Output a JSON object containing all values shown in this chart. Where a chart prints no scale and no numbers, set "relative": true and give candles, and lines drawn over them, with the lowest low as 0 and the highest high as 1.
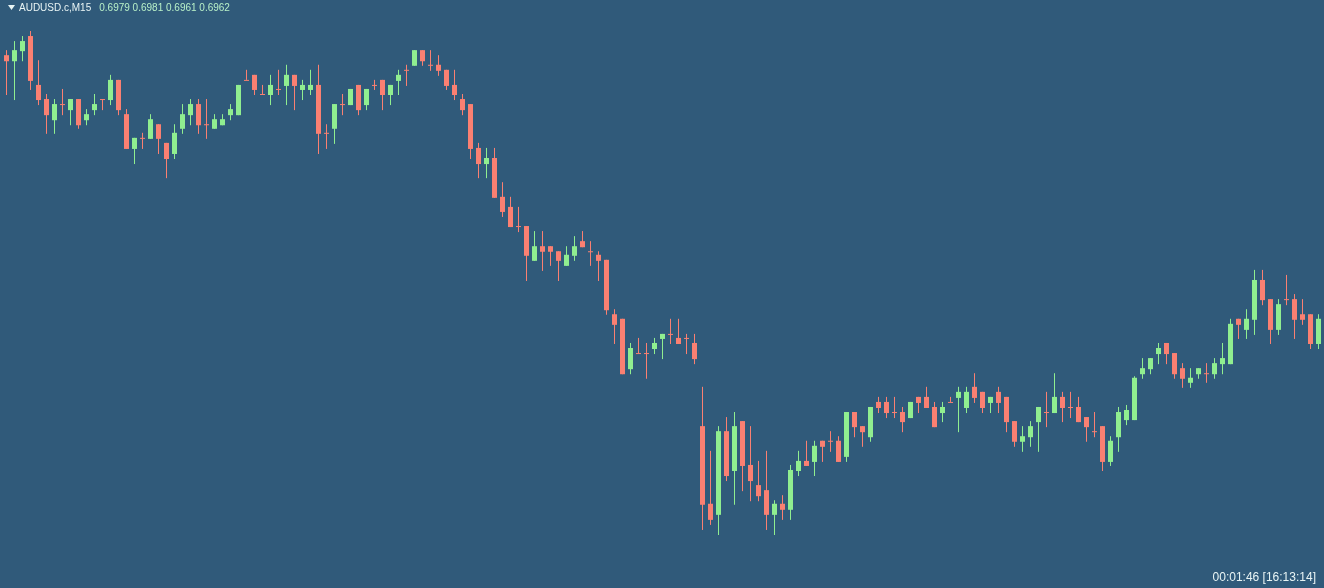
{
  "chart_data": {
    "type": "candlestick",
    "title": "AUDUSD.c,M15",
    "annotations": [
      "0.6979 0.6981 0.6961 0.6962",
      "00:01:46 [16:13:14]"
    ],
    "relative": true,
    "colors": [
      "#fa8072",
      "#90ee90",
      "#90ee90",
      "#fa8072",
      "#fa8072",
      "#fa8072",
      "#90ee90",
      "#fa8072",
      "#90ee90",
      "#fa8072",
      "#90ee90",
      "#90ee90",
      "#fa8072",
      "#90ee90",
      "#fa8072",
      "#fa8072",
      "#90ee90",
      "#fa8072",
      "#90ee90",
      "#fa8072",
      "#fa8072",
      "#90ee90",
      "#90ee90",
      "#90ee90",
      "#fa8072",
      "#fa8072",
      "#90ee90",
      "#90ee90",
      "#90ee90",
      "#90ee90",
      "#fa8072",
      "#fa8072",
      "#fa8072",
      "#90ee90",
      "#fa8072",
      "#90ee90",
      "#fa8072",
      "#90ee90",
      "#90ee90",
      "#fa8072",
      "#fa8072",
      "#90ee90",
      "#fa8072",
      "#90ee90",
      "#fa8072",
      "#90ee90",
      "#fa8072",
      "#fa8072",
      "#90ee90",
      "#90ee90",
      "#fa8072",
      "#90ee90",
      "#fa8072",
      "#fa8072",
      "#fa8072",
      "#fa8072",
      "#fa8072",
      "#fa8072",
      "#fa8072",
      "#fa8072",
      "#90ee90",
      "#fa8072",
      "#fa8072",
      "#fa8072",
      "#fa8072",
      "#fa8072",
      "#90ee90",
      "#fa8072",
      "#fa8072",
      "#fa8072",
      "#90ee90",
      "#90ee90",
      "#fa8072",
      "#fa8072",
      "#fa8072",
      "#fa8072",
      "#fa8072",
      "#fa8072",
      "#90ee90",
      "#fa8072",
      "#fa8072",
      "#90ee90",
      "#90ee90",
      "#fa8072",
      "#fa8072",
      "#fa8072",
      "#fa8072",
      "#fa8072",
      "#fa8072",
      "#90ee90",
      "#fa8072",
      "#90ee90",
      "#fa8072",
      "#fa8072",
      "#fa8072",
      "#fa8072",
      "#90ee90",
      "#fa8072",
      "#90ee90",
      "#90ee90",
      "#fa8072",
      "#90ee90",
      "#fa8072",
      "#fa8072",
      "#fa8072",
      "#90ee90",
      "#fa8072",
      "#fa8072",
      "#90ee90",
      "#fa8072",
      "#fa8072",
      "#fa8072",
      "#fa8072",
      "#90ee90",
      "#fa8072",
      "#fa8072",
      "#fa8072",
      "#90ee90",
      "#fa8072",
      "#90ee90",
      "#90ee90",
      "#fa8072",
      "#fa8072",
      "#90ee90",
      "#fa8072",
      "#fa8072",
      "#fa8072",
      "#90ee90",
      "#90ee90",
      "#90ee90",
      "#fa8072",
      "#90ee90",
      "#fa8072",
      "#fa8072",
      "#fa8072",
      "#fa8072",
      "#fa8072",
      "#fa8072",
      "#90ee90",
      "#90ee90",
      "#90ee90",
      "#90ee90",
      "#90ee90",
      "#90ee90",
      "#90ee90",
      "#fa8072",
      "#fa8072",
      "#fa8072",
      "#90ee90",
      "#90ee90",
      "#fa8072",
      "#90ee90",
      "#90ee90",
      "#90ee90",
      "#fa8072",
      "#90ee90",
      "#90ee90",
      "#fa8072",
      "#fa8072",
      "#90ee90",
      "#fa8072",
      "#fa8072",
      "#fa8072",
      "#fa8072",
      "#90ee90"
    ],
    "categories": [
      null,
      null,
      null,
      null,
      null,
      null,
      null,
      null,
      null,
      null,
      null,
      null,
      null,
      null,
      null,
      null,
      null,
      null,
      null,
      null,
      null,
      null,
      null,
      null,
      null,
      null,
      null,
      null,
      null,
      null,
      null,
      null,
      null,
      null,
      null,
      null,
      null,
      null,
      null,
      null,
      null,
      null,
      null,
      null,
      null,
      null,
      null,
      null,
      null,
      null,
      null,
      null,
      null,
      null,
      null,
      null,
      null,
      null,
      null,
      null,
      null,
      null,
      null,
      null,
      null,
      null,
      null,
      null,
      null,
      null,
      null,
      null,
      null,
      null,
      null,
      null,
      null,
      null,
      null,
      null,
      null,
      null,
      null,
      null,
      null,
      null,
      null,
      null,
      null,
      null,
      null,
      null,
      null,
      null,
      null,
      null,
      null,
      null,
      null,
      null,
      null,
      null,
      null,
      null,
      null,
      null,
      null,
      null,
      null,
      null,
      null,
      null,
      null,
      null,
      null,
      null,
      null,
      null,
      null,
      null,
      null,
      null,
      null,
      null,
      null,
      null,
      null,
      null,
      null,
      null,
      null,
      null,
      null,
      null,
      null,
      null,
      null,
      null,
      null,
      null,
      null,
      null,
      null,
      null,
      null,
      null,
      null,
      null,
      null,
      null,
      null,
      null,
      null,
      null,
      null,
      null,
      null,
      null,
      null,
      null,
      null,
      null,
      null,
      null,
      null
    ],
    "ohlc": [
      [
        0.952,
        0.962,
        0.873,
        0.94
      ],
      [
        0.94,
        0.98,
        0.863,
        0.962
      ],
      [
        0.96,
        0.99,
        0.94,
        0.98
      ],
      [
        0.99,
        1,
        0.883,
        0.901
      ],
      [
        0.893,
        0.942,
        0.853,
        0.863
      ],
      [
        0.865,
        0.875,
        0.796,
        0.833
      ],
      [
        0.823,
        0.865,
        0.796,
        0.855
      ],
      [
        0.855,
        0.885,
        0.833,
        0.855
      ],
      [
        0.843,
        0.865,
        0.813,
        0.865
      ],
      [
        0.865,
        0.865,
        0.806,
        0.813
      ],
      [
        0.823,
        0.845,
        0.813,
        0.835
      ],
      [
        0.843,
        0.875,
        0.833,
        0.855
      ],
      [
        0.865,
        0.865,
        0.843,
        0.865
      ],
      [
        0.863,
        0.913,
        0.853,
        0.903
      ],
      [
        0.903,
        0.903,
        0.833,
        0.843
      ],
      [
        0.835,
        0.845,
        0.766,
        0.766
      ],
      [
        0.766,
        0.788,
        0.736,
        0.788
      ],
      [
        0.788,
        0.798,
        0.766,
        0.788
      ],
      [
        0.786,
        0.835,
        0.786,
        0.825
      ],
      [
        0.815,
        0.815,
        0.756,
        0.786
      ],
      [
        0.778,
        0.778,
        0.708,
        0.746
      ],
      [
        0.756,
        0.815,
        0.746,
        0.798
      ],
      [
        0.806,
        0.855,
        0.796,
        0.835
      ],
      [
        0.833,
        0.865,
        0.813,
        0.855
      ],
      [
        0.855,
        0.865,
        0.796,
        0.813
      ],
      [
        0.815,
        0.865,
        0.786,
        0.815
      ],
      [
        0.806,
        0.835,
        0.806,
        0.825
      ],
      [
        0.813,
        0.835,
        0.813,
        0.825
      ],
      [
        0.833,
        0.855,
        0.823,
        0.845
      ],
      [
        0.833,
        0.893,
        0.833,
        0.893
      ],
      [
        0.903,
        0.923,
        0.903,
        0.903
      ],
      [
        0.913,
        0.913,
        0.873,
        0.883
      ],
      [
        0.875,
        0.893,
        0.875,
        0.875
      ],
      [
        0.873,
        0.913,
        0.853,
        0.893
      ],
      [
        0.885,
        0.923,
        0.873,
        0.885
      ],
      [
        0.891,
        0.933,
        0.853,
        0.913
      ],
      [
        0.913,
        0.913,
        0.843,
        0.891
      ],
      [
        0.883,
        0.903,
        0.863,
        0.893
      ],
      [
        0.883,
        0.923,
        0.873,
        0.893
      ],
      [
        0.893,
        0.933,
        0.756,
        0.796
      ],
      [
        0.798,
        0.815,
        0.766,
        0.798
      ],
      [
        0.806,
        0.855,
        0.776,
        0.855
      ],
      [
        0.855,
        0.875,
        0.833,
        0.855
      ],
      [
        0.853,
        0.885,
        0.853,
        0.885
      ],
      [
        0.893,
        0.893,
        0.833,
        0.843
      ],
      [
        0.853,
        0.885,
        0.843,
        0.885
      ],
      [
        0.893,
        0.903,
        0.883,
        0.893
      ],
      [
        0.903,
        0.903,
        0.843,
        0.873
      ],
      [
        0.873,
        0.893,
        0.853,
        0.893
      ],
      [
        0.901,
        0.923,
        0.873,
        0.913
      ],
      [
        0.923,
        0.933,
        0.891,
        0.923
      ],
      [
        0.931,
        0.962,
        0.931,
        0.962
      ],
      [
        0.962,
        0.962,
        0.931,
        0.94
      ],
      [
        0.933,
        0.962,
        0.921,
        0.933
      ],
      [
        0.933,
        0.952,
        0.911,
        0.921
      ],
      [
        0.923,
        0.923,
        0.883,
        0.891
      ],
      [
        0.893,
        0.923,
        0.863,
        0.873
      ],
      [
        0.865,
        0.875,
        0.833,
        0.843
      ],
      [
        0.855,
        0.855,
        0.746,
        0.766
      ],
      [
        0.768,
        0.778,
        0.708,
        0.736
      ],
      [
        0.736,
        0.768,
        0.708,
        0.748
      ],
      [
        0.748,
        0.768,
        0.669,
        0.669
      ],
      [
        0.671,
        0.7,
        0.631,
        0.641
      ],
      [
        0.651,
        0.671,
        0.611,
        0.611
      ],
      [
        0.613,
        0.651,
        0.601,
        0.613
      ],
      [
        0.613,
        0.613,
        0.504,
        0.554
      ],
      [
        0.544,
        0.603,
        0.544,
        0.573
      ],
      [
        0.573,
        0.603,
        0.524,
        0.562
      ],
      [
        0.573,
        0.573,
        0.534,
        0.562
      ],
      [
        0.563,
        0.563,
        0.504,
        0.544
      ],
      [
        0.534,
        0.573,
        0.534,
        0.556
      ],
      [
        0.554,
        0.593,
        0.544,
        0.573
      ],
      [
        0.583,
        0.603,
        0.571,
        0.571
      ],
      [
        0.563,
        0.583,
        0.534,
        0.563
      ],
      [
        0.556,
        0.563,
        0.504,
        0.544
      ],
      [
        0.546,
        0.546,
        0.437,
        0.446
      ],
      [
        0.438,
        0.448,
        0.379,
        0.417
      ],
      [
        0.429,
        0.429,
        0.319,
        0.319
      ],
      [
        0.329,
        0.381,
        0.319,
        0.371
      ],
      [
        0.361,
        0.391,
        0.361,
        0.361
      ],
      [
        0.361,
        0.381,
        0.31,
        0.361
      ],
      [
        0.369,
        0.391,
        0.359,
        0.381
      ],
      [
        0.389,
        0.399,
        0.349,
        0.399
      ],
      [
        0.399,
        0.429,
        0.379,
        0.399
      ],
      [
        0.391,
        0.429,
        0.379,
        0.379
      ],
      [
        0.391,
        0.399,
        0.359,
        0.391
      ],
      [
        0.381,
        0.399,
        0.339,
        0.349
      ],
      [
        0.216,
        0.294,
        0.01,
        0.06
      ],
      [
        0.062,
        0.167,
        0.02,
        0.03
      ],
      [
        0.04,
        0.216,
        0,
        0.206
      ],
      [
        0.206,
        0.234,
        0.107,
        0.117
      ],
      [
        0.127,
        0.244,
        0.06,
        0.216
      ],
      [
        0.226,
        0.226,
        0.087,
        0.137
      ],
      [
        0.139,
        0.216,
        0.067,
        0.107
      ],
      [
        0.099,
        0.147,
        0.067,
        0.077
      ],
      [
        0.089,
        0.167,
        0.01,
        0.04
      ],
      [
        0.04,
        0.069,
        0,
        0.062
      ],
      [
        0.062,
        0.079,
        0.03,
        0.05
      ],
      [
        0.05,
        0.139,
        0.03,
        0.129
      ],
      [
        0.127,
        0.167,
        0.117,
        0.147
      ],
      [
        0.147,
        0.187,
        0.137,
        0.137
      ],
      [
        0.145,
        0.187,
        0.117,
        0.177
      ],
      [
        0.187,
        0.187,
        0.145,
        0.175
      ],
      [
        0.187,
        0.206,
        0.165,
        0.187
      ],
      [
        0.187,
        0.196,
        0.145,
        0.145
      ],
      [
        0.155,
        0.244,
        0.145,
        0.244
      ],
      [
        0.244,
        0.244,
        0.194,
        0.214
      ],
      [
        0.216,
        0.216,
        0.175,
        0.204
      ],
      [
        0.194,
        0.254,
        0.185,
        0.254
      ],
      [
        0.264,
        0.274,
        0.242,
        0.252
      ],
      [
        0.264,
        0.274,
        0.232,
        0.242
      ],
      [
        0.244,
        0.274,
        0.232,
        0.244
      ],
      [
        0.244,
        0.254,
        0.204,
        0.224
      ],
      [
        0.232,
        0.264,
        0.232,
        0.264
      ],
      [
        0.274,
        0.274,
        0.242,
        0.262
      ],
      [
        0.274,
        0.294,
        0.252,
        0.252
      ],
      [
        0.254,
        0.264,
        0.214,
        0.214
      ],
      [
        0.242,
        0.264,
        0.224,
        0.254
      ],
      [
        0.264,
        0.274,
        0.264,
        0.264
      ],
      [
        0.272,
        0.294,
        0.204,
        0.284
      ],
      [
        0.252,
        0.294,
        0.242,
        0.284
      ],
      [
        0.294,
        0.321,
        0.262,
        0.272
      ],
      [
        0.284,
        0.284,
        0.242,
        0.252
      ],
      [
        0.262,
        0.274,
        0.242,
        0.274
      ],
      [
        0.284,
        0.294,
        0.242,
        0.262
      ],
      [
        0.274,
        0.274,
        0.204,
        0.224
      ],
      [
        0.226,
        0.226,
        0.175,
        0.185
      ],
      [
        0.185,
        0.216,
        0.165,
        0.196
      ],
      [
        0.194,
        0.226,
        0.175,
        0.216
      ],
      [
        0.224,
        0.254,
        0.165,
        0.254
      ],
      [
        0.244,
        0.284,
        0.214,
        0.244
      ],
      [
        0.242,
        0.321,
        0.242,
        0.274
      ],
      [
        0.274,
        0.284,
        0.224,
        0.252
      ],
      [
        0.254,
        0.284,
        0.232,
        0.254
      ],
      [
        0.254,
        0.274,
        0.224,
        0.224
      ],
      [
        0.234,
        0.234,
        0.185,
        0.214
      ],
      [
        0.206,
        0.244,
        0.194,
        0.206
      ],
      [
        0.216,
        0.216,
        0.127,
        0.145
      ],
      [
        0.145,
        0.196,
        0.137,
        0.187
      ],
      [
        0.194,
        0.254,
        0.165,
        0.244
      ],
      [
        0.228,
        0.258,
        0.218,
        0.248
      ],
      [
        0.228,
        0.315,
        0.228,
        0.312
      ],
      [
        0.319,
        0.351,
        0.31,
        0.331
      ],
      [
        0.329,
        0.351,
        0.319,
        0.351
      ],
      [
        0.359,
        0.381,
        0.339,
        0.371
      ],
      [
        0.381,
        0.381,
        0.339,
        0.359
      ],
      [
        0.361,
        0.361,
        0.31,
        0.319
      ],
      [
        0.331,
        0.341,
        0.292,
        0.31
      ],
      [
        0.302,
        0.331,
        0.292,
        0.312
      ],
      [
        0.319,
        0.331,
        0.31,
        0.331
      ],
      [
        0.321,
        0.341,
        0.302,
        0.321
      ],
      [
        0.319,
        0.351,
        0.31,
        0.341
      ],
      [
        0.339,
        0.381,
        0.319,
        0.351
      ],
      [
        0.339,
        0.429,
        0.339,
        0.419
      ],
      [
        0.429,
        0.429,
        0.389,
        0.417
      ],
      [
        0.407,
        0.448,
        0.389,
        0.429
      ],
      [
        0.427,
        0.526,
        0.397,
        0.506
      ],
      [
        0.506,
        0.526,
        0.456,
        0.466
      ],
      [
        0.468,
        0.468,
        0.379,
        0.407
      ],
      [
        0.407,
        0.468,
        0.397,
        0.458
      ],
      [
        0.468,
        0.516,
        0.456,
        0.468
      ],
      [
        0.468,
        0.478,
        0.389,
        0.427
      ],
      [
        0.438,
        0.468,
        0.417,
        0.427
      ],
      [
        0.438,
        0.438,
        0.369,
        0.379
      ],
      [
        0.379,
        0.438,
        0.369,
        0.429
      ]
    ]
  }
}
